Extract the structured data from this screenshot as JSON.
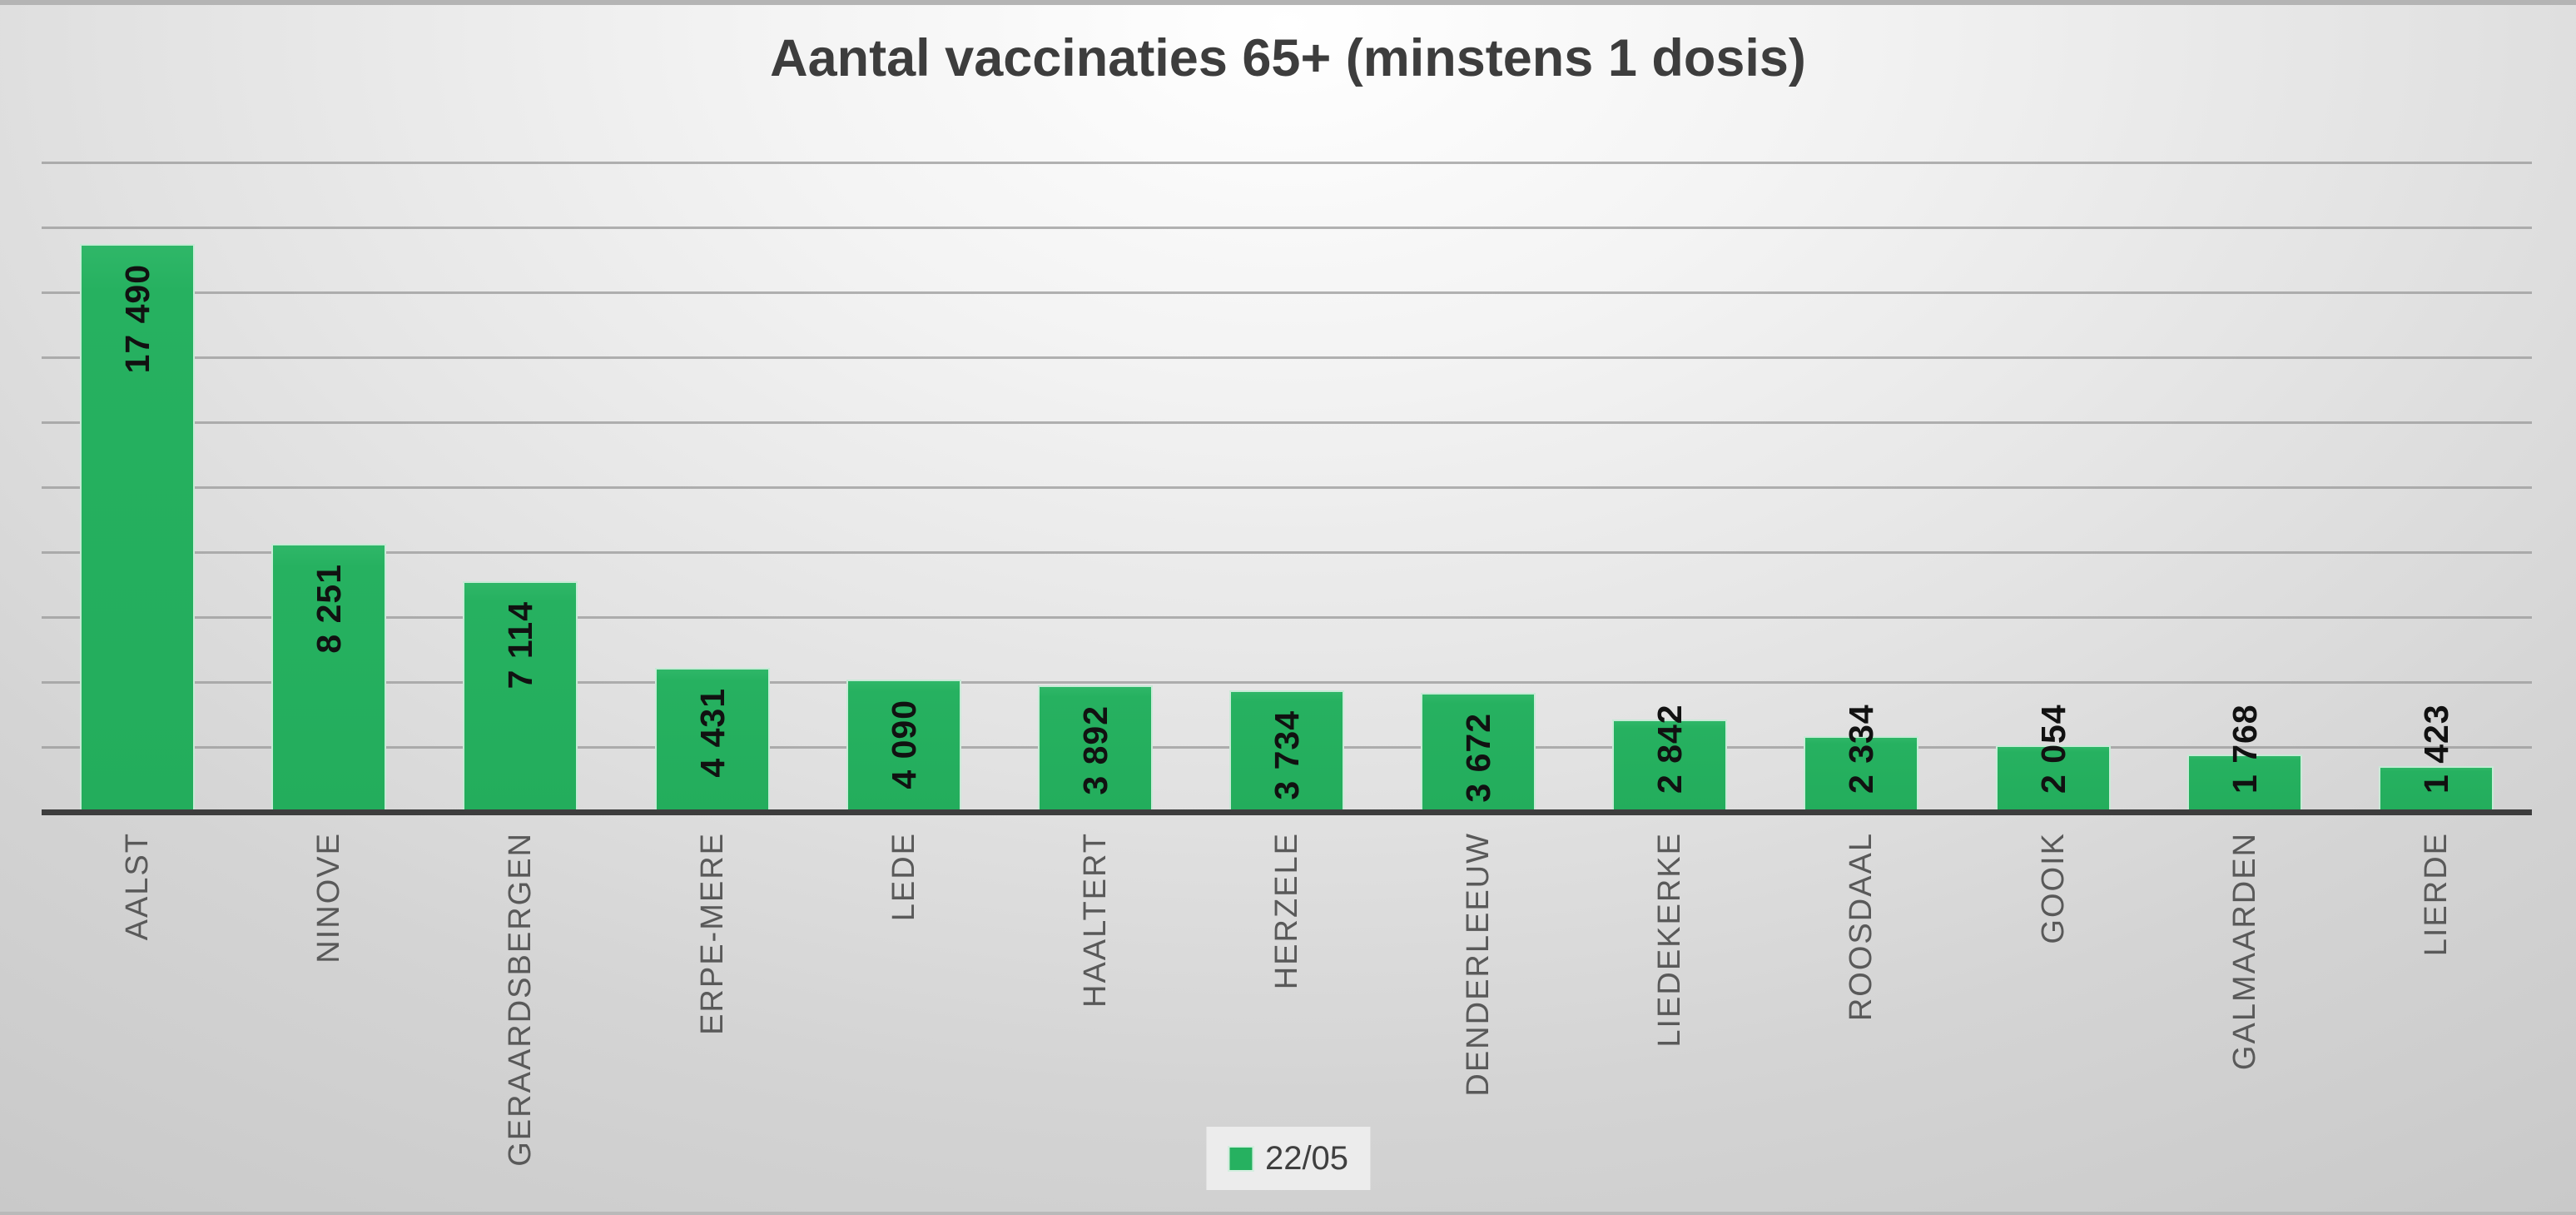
{
  "title": "Aantal vaccinaties 65+ (minstens 1 dosis)",
  "legend": {
    "label": "22/05"
  },
  "colors": {
    "bar_fill": "#26b160",
    "bar_border": "#ffffff",
    "axis_line": "#3d3d3d",
    "gridline": "#9a9a9a",
    "title_text": "#3d3d3d",
    "category_text": "#595959",
    "value_text": "#111111"
  },
  "chart_data": {
    "type": "bar",
    "title": "Aantal vaccinaties 65+ (minstens 1 dosis)",
    "series_name": "22/05",
    "categories": [
      "AALST",
      "NINOVE",
      "GERAARDSBERGEN",
      "ERPE-MERE",
      "LEDE",
      "HAALTERT",
      "HERZELE",
      "DENDERLEEUW",
      "LIEDEKERKE",
      "ROOSDAAL",
      "GOOIK",
      "GALMAARDEN",
      "LIERDE"
    ],
    "values": [
      17490,
      8251,
      7114,
      4431,
      4090,
      3892,
      3734,
      3672,
      2842,
      2334,
      2054,
      1768,
      1423
    ],
    "value_labels": [
      "17 490",
      "8 251",
      "7 114",
      "4 431",
      "4 090",
      "3 892",
      "3 734",
      "3 672",
      "2 842",
      "2 334",
      "2 054",
      "1 768",
      "1 423"
    ],
    "label_inside": [
      true,
      true,
      true,
      true,
      true,
      true,
      true,
      true,
      false,
      false,
      false,
      false,
      false
    ],
    "xlabel": "",
    "ylabel": "",
    "ylim": [
      0,
      20000
    ],
    "gridline_interval": 2000,
    "grid": true,
    "y_axis_labels_visible": false,
    "legend_position": "bottom-center",
    "bar_orientation": "vertical",
    "label_rotation_deg": -90
  }
}
